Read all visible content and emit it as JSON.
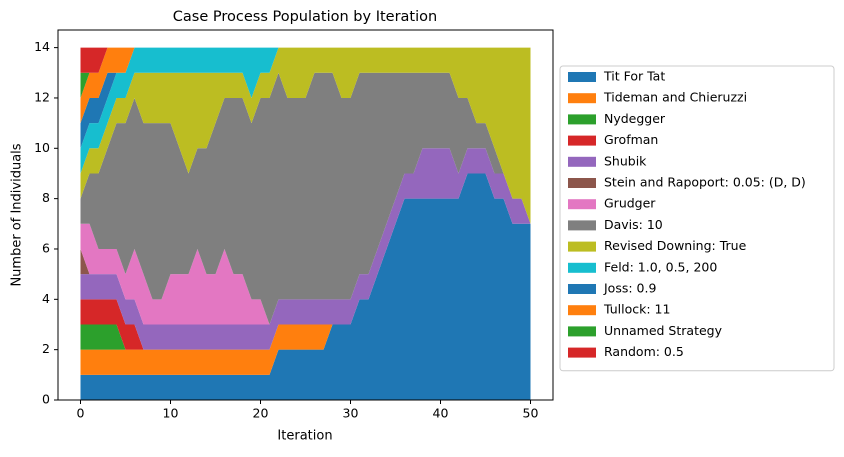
{
  "chart_data": {
    "type": "stackedarea",
    "title": "Case Process Population by Iteration",
    "x_label": "Iteration",
    "y_label": "Number of Individuals",
    "x": [
      0,
      1,
      2,
      3,
      4,
      5,
      6,
      7,
      8,
      9,
      10,
      11,
      12,
      13,
      14,
      15,
      16,
      17,
      18,
      19,
      20,
      21,
      22,
      23,
      24,
      25,
      26,
      27,
      28,
      29,
      30,
      31,
      32,
      33,
      34,
      35,
      36,
      37,
      38,
      39,
      40,
      41,
      42,
      43,
      44,
      45,
      46,
      47,
      48,
      49,
      50
    ],
    "xlim": [
      -2.5,
      52.5
    ],
    "xticks": [
      0,
      10,
      20,
      30,
      40,
      50
    ],
    "ylim": [
      0,
      14.7
    ],
    "yticks": [
      0,
      2,
      4,
      6,
      8,
      10,
      12,
      14
    ],
    "legend": "right-outside",
    "series": [
      {
        "name": "Tit For Tat",
        "color": "#1f77b4",
        "values": [
          1,
          1,
          1,
          1,
          1,
          1,
          1,
          1,
          1,
          1,
          1,
          1,
          1,
          1,
          1,
          1,
          1,
          1,
          1,
          1,
          1,
          1,
          2,
          2,
          2,
          2,
          2,
          2,
          3,
          3,
          3,
          4,
          4,
          5,
          6,
          7,
          8,
          8,
          8,
          8,
          8,
          8,
          8,
          9,
          9,
          9,
          8,
          8,
          7,
          7,
          7
        ]
      },
      {
        "name": "Tideman and Chieruzzi",
        "color": "#ff7f0e",
        "values": [
          1,
          1,
          1,
          1,
          1,
          1,
          1,
          1,
          1,
          1,
          1,
          1,
          1,
          1,
          1,
          1,
          1,
          1,
          1,
          1,
          1,
          1,
          1,
          1,
          1,
          1,
          1,
          1,
          0,
          0,
          0,
          0,
          0,
          0,
          0,
          0,
          0,
          0,
          0,
          0,
          0,
          0,
          0,
          0,
          0,
          0,
          0,
          0,
          0,
          0,
          0
        ]
      },
      {
        "name": "Nydegger",
        "color": "#2ca02c",
        "values": [
          1,
          1,
          1,
          1,
          1,
          0,
          0,
          0,
          0,
          0,
          0,
          0,
          0,
          0,
          0,
          0,
          0,
          0,
          0,
          0,
          0,
          0,
          0,
          0,
          0,
          0,
          0,
          0,
          0,
          0,
          0,
          0,
          0,
          0,
          0,
          0,
          0,
          0,
          0,
          0,
          0,
          0,
          0,
          0,
          0,
          0,
          0,
          0,
          0,
          0,
          0
        ]
      },
      {
        "name": "Grofman",
        "color": "#d62728",
        "values": [
          1,
          1,
          1,
          1,
          1,
          1,
          1,
          0,
          0,
          0,
          0,
          0,
          0,
          0,
          0,
          0,
          0,
          0,
          0,
          0,
          0,
          0,
          0,
          0,
          0,
          0,
          0,
          0,
          0,
          0,
          0,
          0,
          0,
          0,
          0,
          0,
          0,
          0,
          0,
          0,
          0,
          0,
          0,
          0,
          0,
          0,
          0,
          0,
          0,
          0,
          0
        ]
      },
      {
        "name": "Shubik",
        "color": "#9467bd",
        "values": [
          1,
          1,
          1,
          1,
          1,
          1,
          1,
          1,
          1,
          1,
          1,
          1,
          1,
          1,
          1,
          1,
          1,
          1,
          1,
          1,
          1,
          1,
          1,
          1,
          1,
          1,
          1,
          1,
          1,
          1,
          1,
          1,
          1,
          1,
          1,
          1,
          1,
          1,
          2,
          2,
          2,
          2,
          1,
          1,
          1,
          1,
          1,
          1,
          1,
          1,
          0
        ]
      },
      {
        "name": "Stein and Rapoport: 0.05: (D, D)",
        "color": "#8c564b",
        "values": [
          1,
          0,
          0,
          0,
          0,
          0,
          0,
          0,
          0,
          0,
          0,
          0,
          0,
          0,
          0,
          0,
          0,
          0,
          0,
          0,
          0,
          0,
          0,
          0,
          0,
          0,
          0,
          0,
          0,
          0,
          0,
          0,
          0,
          0,
          0,
          0,
          0,
          0,
          0,
          0,
          0,
          0,
          0,
          0,
          0,
          0,
          0,
          0,
          0,
          0,
          0
        ]
      },
      {
        "name": "Grudger",
        "color": "#e377c2",
        "values": [
          1,
          2,
          1,
          1,
          1,
          1,
          2,
          2,
          1,
          1,
          2,
          2,
          2,
          3,
          2,
          2,
          3,
          2,
          2,
          1,
          1,
          0,
          0,
          0,
          0,
          0,
          0,
          0,
          0,
          0,
          0,
          0,
          0,
          0,
          0,
          0,
          0,
          0,
          0,
          0,
          0,
          0,
          0,
          0,
          0,
          0,
          0,
          0,
          0,
          0,
          0
        ]
      },
      {
        "name": "Davis: 10",
        "color": "#7f7f7f",
        "values": [
          1,
          2,
          3,
          4,
          5,
          6,
          6,
          6,
          7,
          7,
          6,
          5,
          4,
          4,
          5,
          6,
          6,
          7,
          7,
          7,
          8,
          9,
          9,
          8,
          8,
          8,
          9,
          9,
          9,
          8,
          8,
          8,
          8,
          7,
          6,
          5,
          4,
          4,
          3,
          3,
          3,
          3,
          3,
          2,
          1,
          1,
          1,
          0,
          0,
          0,
          0
        ]
      },
      {
        "name": "Revised Downing: True",
        "color": "#bcbd22",
        "values": [
          1,
          1,
          1,
          1,
          1,
          1,
          1,
          2,
          2,
          2,
          2,
          3,
          4,
          3,
          3,
          2,
          1,
          1,
          1,
          1,
          1,
          1,
          1,
          2,
          2,
          2,
          1,
          1,
          1,
          2,
          2,
          1,
          1,
          1,
          1,
          1,
          1,
          1,
          1,
          1,
          1,
          1,
          2,
          2,
          3,
          3,
          4,
          5,
          6,
          6,
          7
        ]
      },
      {
        "name": "Feld: 1.0, 0.5, 200",
        "color": "#17becf",
        "values": [
          1,
          1,
          1,
          1,
          1,
          1,
          1,
          1,
          1,
          1,
          1,
          1,
          1,
          1,
          1,
          1,
          1,
          1,
          1,
          2,
          1,
          1,
          0,
          0,
          0,
          0,
          0,
          0,
          0,
          0,
          0,
          0,
          0,
          0,
          0,
          0,
          0,
          0,
          0,
          0,
          0,
          0,
          0,
          0,
          0,
          0,
          0,
          0,
          0,
          0,
          0
        ]
      },
      {
        "name": "Joss: 0.9",
        "color": "#1f77b4",
        "values": [
          1,
          1,
          1,
          1,
          0,
          0,
          0,
          0,
          0,
          0,
          0,
          0,
          0,
          0,
          0,
          0,
          0,
          0,
          0,
          0,
          0,
          0,
          0,
          0,
          0,
          0,
          0,
          0,
          0,
          0,
          0,
          0,
          0,
          0,
          0,
          0,
          0,
          0,
          0,
          0,
          0,
          0,
          0,
          0,
          0,
          0,
          0,
          0,
          0,
          0,
          0
        ]
      },
      {
        "name": "Tullock: 11",
        "color": "#ff7f0e",
        "values": [
          1,
          1,
          1,
          1,
          1,
          1,
          0,
          0,
          0,
          0,
          0,
          0,
          0,
          0,
          0,
          0,
          0,
          0,
          0,
          0,
          0,
          0,
          0,
          0,
          0,
          0,
          0,
          0,
          0,
          0,
          0,
          0,
          0,
          0,
          0,
          0,
          0,
          0,
          0,
          0,
          0,
          0,
          0,
          0,
          0,
          0,
          0,
          0,
          0,
          0,
          0
        ]
      },
      {
        "name": "Unnamed Strategy",
        "color": "#2ca02c",
        "values": [
          1,
          0,
          0,
          0,
          0,
          0,
          0,
          0,
          0,
          0,
          0,
          0,
          0,
          0,
          0,
          0,
          0,
          0,
          0,
          0,
          0,
          0,
          0,
          0,
          0,
          0,
          0,
          0,
          0,
          0,
          0,
          0,
          0,
          0,
          0,
          0,
          0,
          0,
          0,
          0,
          0,
          0,
          0,
          0,
          0,
          0,
          0,
          0,
          0,
          0,
          0
        ]
      },
      {
        "name": "Random: 0.5",
        "color": "#d62728",
        "values": [
          1,
          1,
          1,
          0,
          0,
          0,
          0,
          0,
          0,
          0,
          0,
          0,
          0,
          0,
          0,
          0,
          0,
          0,
          0,
          0,
          0,
          0,
          0,
          0,
          0,
          0,
          0,
          0,
          0,
          0,
          0,
          0,
          0,
          0,
          0,
          0,
          0,
          0,
          0,
          0,
          0,
          0,
          0,
          0,
          0,
          0,
          0,
          0,
          0,
          0,
          0
        ]
      }
    ]
  }
}
